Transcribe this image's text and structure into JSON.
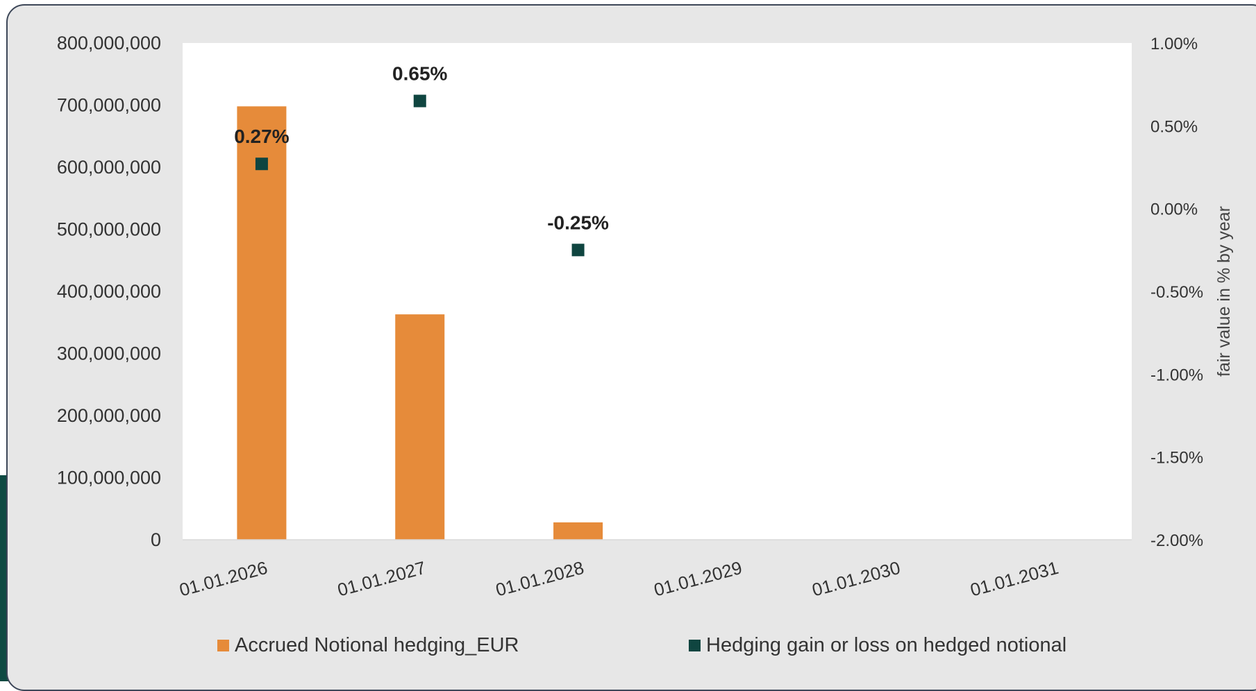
{
  "colors": {
    "bar": "#e68b3a",
    "marker": "#0f4540",
    "plot_bg": "#ffffff",
    "card_bg": "#e7e7e7",
    "accent": "#0e4a42"
  },
  "chart_data": {
    "type": "bar",
    "categories": [
      "01.01.2026",
      "01.01.2027",
      "01.01.2028",
      "01.01.2029",
      "01.01.2030",
      "01.01.2031"
    ],
    "series": [
      {
        "name": "Accrued Notional hedging_EUR",
        "type": "bar",
        "axis": "left",
        "values": [
          698000000,
          363000000,
          28000000,
          0,
          0,
          0
        ]
      },
      {
        "name": "Hedging gain or loss on hedged notional",
        "type": "scatter",
        "axis": "right",
        "values": [
          0.27,
          0.65,
          -0.25,
          null,
          null,
          null
        ],
        "labels": [
          "0.27%",
          "0.65%",
          "-0.25%",
          null,
          null,
          null
        ]
      }
    ],
    "ylim": [
      0,
      800000000
    ],
    "y_ticks": [
      "0",
      "100,000,000",
      "200,000,000",
      "300,000,000",
      "400,000,000",
      "500,000,000",
      "600,000,000",
      "700,000,000",
      "800,000,000"
    ],
    "y2lim": [
      -2.0,
      1.0
    ],
    "y2_ticks": [
      "-2.00%",
      "-1.50%",
      "-1.00%",
      "-0.50%",
      "0.00%",
      "0.50%",
      "1.00%"
    ],
    "y2label": "fair value in % by year",
    "xlabel": "",
    "ylabel": "",
    "legend_position": "bottom",
    "grid": false
  }
}
